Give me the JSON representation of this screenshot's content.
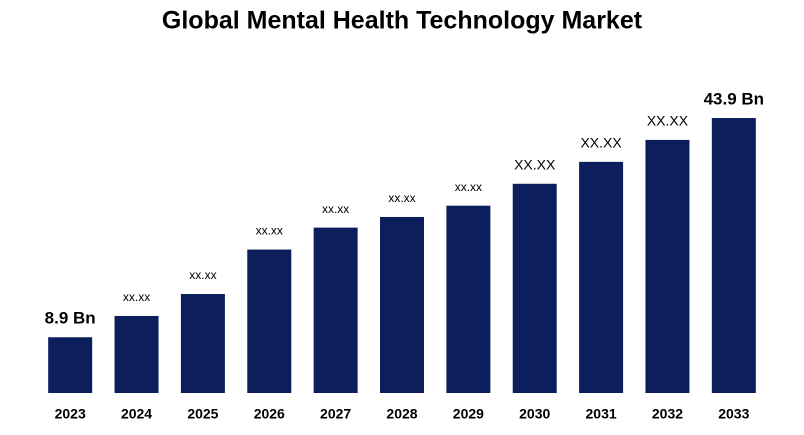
{
  "chart_data": {
    "type": "bar",
    "title": "Global Mental Health Technology Market",
    "categories": [
      "2023",
      "2024",
      "2025",
      "2026",
      "2027",
      "2028",
      "2029",
      "2030",
      "2031",
      "2032",
      "2033"
    ],
    "values": [
      8.9,
      12.3,
      15.8,
      22.9,
      26.4,
      28.1,
      29.9,
      33.4,
      36.9,
      40.4,
      43.9
    ],
    "value_labels": [
      "8.9 Bn",
      "xx.xx",
      "xx.xx",
      "xx.xx",
      "xx.xx",
      "xx.xx",
      "xx.xx",
      "XX.XX",
      "XX.XX",
      "XX.XX",
      "43.9 Bn"
    ],
    "color": "#0c1f5c"
  }
}
